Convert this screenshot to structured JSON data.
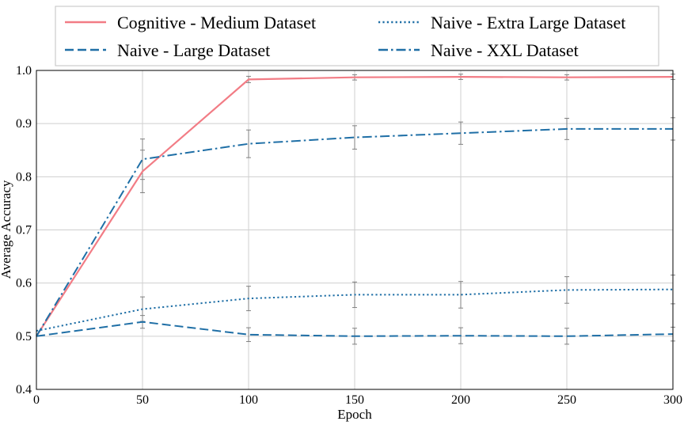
{
  "chart_data": {
    "type": "line",
    "title": "",
    "xlabel": "Epoch",
    "ylabel": "Average Accuracy",
    "xlim": [
      0,
      300
    ],
    "ylim": [
      0.4,
      1.0
    ],
    "xticks": [
      "0",
      "50",
      "100",
      "150",
      "200",
      "250",
      "300"
    ],
    "yticks": [
      "0.4",
      "0.5",
      "0.6",
      "0.7",
      "0.8",
      "0.9",
      "1.0"
    ],
    "grid": true,
    "legend_position": "top",
    "x": [
      0,
      50,
      100,
      150,
      200,
      250,
      300
    ],
    "series": [
      {
        "name": "Cognitive - Medium Dataset",
        "style": "solid",
        "color": "#f27c85",
        "values": [
          0.5,
          0.81,
          0.983,
          0.987,
          0.988,
          0.987,
          0.988
        ],
        "errors": [
          0.0,
          0.04,
          0.006,
          0.005,
          0.005,
          0.005,
          0.005
        ]
      },
      {
        "name": "Naive - Large Dataset",
        "style": "dashed",
        "color": "#1f6fa6",
        "values": [
          0.5,
          0.527,
          0.503,
          0.5,
          0.501,
          0.5,
          0.504
        ],
        "errors": [
          0.0,
          0.012,
          0.013,
          0.015,
          0.015,
          0.015,
          0.013
        ]
      },
      {
        "name": "Naive - Extra Large Dataset",
        "style": "dotted",
        "color": "#1f6fa6",
        "values": [
          0.51,
          0.551,
          0.571,
          0.578,
          0.578,
          0.587,
          0.588
        ],
        "errors": [
          0.0,
          0.023,
          0.023,
          0.024,
          0.025,
          0.025,
          0.027
        ]
      },
      {
        "name": "Naive - XXL Dataset",
        "style": "dashdot",
        "color": "#1f6fa6",
        "values": [
          0.5,
          0.833,
          0.862,
          0.874,
          0.882,
          0.89,
          0.89
        ],
        "errors": [
          0.0,
          0.038,
          0.026,
          0.022,
          0.021,
          0.02,
          0.021
        ]
      }
    ]
  }
}
